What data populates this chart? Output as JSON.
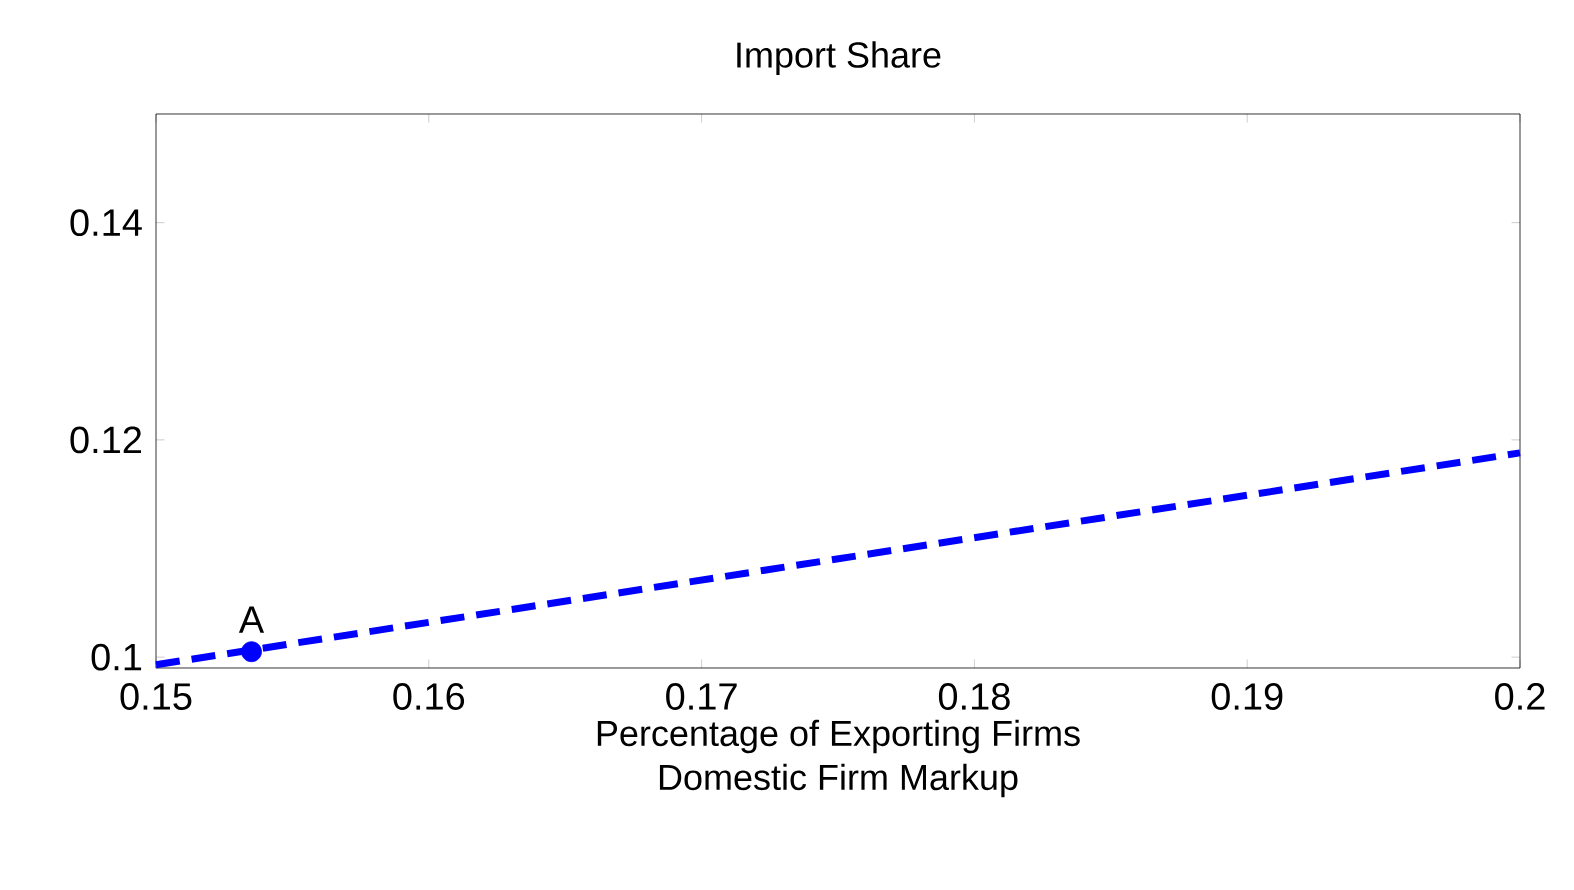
{
  "chart_data": {
    "type": "line",
    "title": "Import Share",
    "xlabel": "Percentage of Exporting Firms",
    "annotations": [
      "Domestic Firm Markup",
      {
        "text": "A",
        "x": 0.1535,
        "y": 0.1005
      }
    ],
    "series": [
      {
        "color": "#0000ff",
        "x": [
          0.15,
          0.2
        ],
        "values": [
          0.0993,
          0.1188
        ],
        "line_style": "dashed",
        "marker": "none"
      },
      {
        "type": "scatter",
        "color": "#0000ff",
        "x": [
          0.1535
        ],
        "values": [
          0.1005
        ],
        "marker": "circle"
      }
    ],
    "xlim": [
      0.15,
      0.2
    ],
    "ylim": [
      0.099,
      0.15
    ],
    "xticks": [
      0.15,
      0.16,
      0.17,
      0.18,
      0.19,
      {
        "value": 0.2,
        "label": "0.2"
      }
    ],
    "yticks": [
      {
        "value": 0.1,
        "label": "0.1"
      },
      0.12,
      0.14
    ],
    "grid": false
  }
}
